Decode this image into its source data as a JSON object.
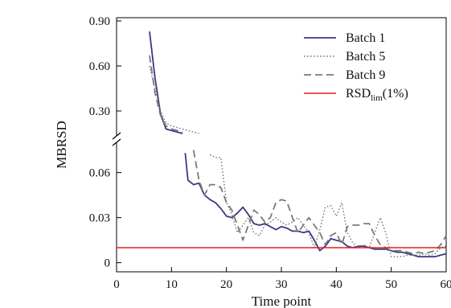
{
  "chart_data": {
    "type": "line",
    "xlabel": "Time point",
    "ylabel": "MBRSD",
    "xlim": [
      0,
      60
    ],
    "x_ticks": [
      "0",
      "10",
      "20",
      "30",
      "40",
      "50",
      "60"
    ],
    "y_axis_break": true,
    "y_upper": {
      "range": [
        0.15,
        0.9
      ],
      "ticks": [
        "0.30",
        "0.60",
        "0.90"
      ],
      "tick_values": [
        0.3,
        0.6,
        0.9
      ]
    },
    "y_lower": {
      "range": [
        -0.005,
        0.078
      ],
      "ticks": [
        "0",
        "0.03",
        "0.06"
      ],
      "tick_values": [
        0,
        0.03,
        0.06
      ]
    },
    "legend_position": "top-right",
    "grid": false,
    "series": [
      {
        "name": "Batch 1",
        "name_main": "Batch 1",
        "name_sub": "",
        "name_suffix": "",
        "color": "#3a3a80",
        "dash": "solid",
        "upper": [
          [
            6,
            0.83
          ],
          [
            7,
            0.52
          ],
          [
            8,
            0.28
          ],
          [
            9,
            0.18
          ],
          [
            10,
            0.17
          ],
          [
            11,
            0.16
          ],
          [
            12,
            0.15
          ]
        ],
        "lower": [
          [
            12.5,
            0.073
          ],
          [
            13,
            0.055
          ],
          [
            14,
            0.052
          ],
          [
            15,
            0.053
          ],
          [
            16,
            0.045
          ],
          [
            17,
            0.042
          ],
          [
            18,
            0.04
          ],
          [
            19,
            0.036
          ],
          [
            20,
            0.031
          ],
          [
            21,
            0.03
          ],
          [
            22,
            0.033
          ],
          [
            23,
            0.037
          ],
          [
            24,
            0.032
          ],
          [
            25,
            0.026
          ],
          [
            26,
            0.025
          ],
          [
            27,
            0.026
          ],
          [
            28,
            0.024
          ],
          [
            29,
            0.022
          ],
          [
            30,
            0.024
          ],
          [
            31,
            0.023
          ],
          [
            32,
            0.021
          ],
          [
            33,
            0.021
          ],
          [
            34,
            0.02
          ],
          [
            35,
            0.021
          ],
          [
            36,
            0.015
          ],
          [
            37,
            0.008
          ],
          [
            38,
            0.011
          ],
          [
            39,
            0.016
          ],
          [
            40,
            0.015
          ],
          [
            41,
            0.014
          ],
          [
            42,
            0.011
          ],
          [
            43,
            0.01
          ],
          [
            44,
            0.011
          ],
          [
            45,
            0.011
          ],
          [
            46,
            0.01
          ],
          [
            47,
            0.009
          ],
          [
            48,
            0.009
          ],
          [
            49,
            0.009
          ],
          [
            50,
            0.008
          ],
          [
            51,
            0.007
          ],
          [
            52,
            0.007
          ],
          [
            53,
            0.006
          ],
          [
            54,
            0.005
          ],
          [
            55,
            0.004
          ],
          [
            56,
            0.004
          ],
          [
            57,
            0.004
          ],
          [
            58,
            0.004
          ],
          [
            59,
            0.005
          ],
          [
            60,
            0.006
          ]
        ]
      },
      {
        "name": "Batch 5",
        "name_main": "Batch 5",
        "name_sub": "",
        "name_suffix": "",
        "color": "#777777",
        "dash": "dotted",
        "upper": [
          [
            6,
            0.6
          ],
          [
            7,
            0.45
          ],
          [
            8,
            0.3
          ],
          [
            9,
            0.22
          ],
          [
            10,
            0.2
          ],
          [
            11,
            0.19
          ],
          [
            12,
            0.18
          ],
          [
            13,
            0.17
          ],
          [
            14,
            0.16
          ],
          [
            15,
            0.15
          ]
        ],
        "lower": [
          [
            17,
            0.072
          ],
          [
            18,
            0.07
          ],
          [
            19,
            0.07
          ],
          [
            20,
            0.04
          ],
          [
            21,
            0.032
          ],
          [
            22,
            0.02
          ],
          [
            23,
            0.025
          ],
          [
            24,
            0.03
          ],
          [
            25,
            0.02
          ],
          [
            26,
            0.018
          ],
          [
            27,
            0.025
          ],
          [
            28,
            0.027
          ],
          [
            29,
            0.03
          ],
          [
            30,
            0.027
          ],
          [
            31,
            0.025
          ],
          [
            32,
            0.027
          ],
          [
            33,
            0.03
          ],
          [
            34,
            0.025
          ],
          [
            35,
            0.02
          ],
          [
            36,
            0.01
          ],
          [
            37,
            0.022
          ],
          [
            38,
            0.037
          ],
          [
            39,
            0.038
          ],
          [
            40,
            0.031
          ],
          [
            41,
            0.04
          ],
          [
            42,
            0.02
          ],
          [
            43,
            0.013
          ],
          [
            44,
            0.01
          ],
          [
            45,
            0.012
          ],
          [
            46,
            0.01
          ],
          [
            47,
            0.02
          ],
          [
            48,
            0.03
          ],
          [
            49,
            0.02
          ],
          [
            50,
            0.004
          ],
          [
            51,
            0.004
          ],
          [
            52,
            0.004
          ],
          [
            53,
            0.005
          ],
          [
            54,
            0.005
          ],
          [
            55,
            0.005
          ],
          [
            56,
            0.006
          ],
          [
            57,
            0.005
          ],
          [
            58,
            0.006
          ],
          [
            59,
            0.01
          ],
          [
            60,
            0.011
          ]
        ]
      },
      {
        "name": "Batch 9",
        "name_main": "Batch 9",
        "name_sub": "",
        "name_suffix": "",
        "color": "#7a7a7a",
        "dash": "dashed",
        "upper": [
          [
            6,
            0.67
          ],
          [
            7,
            0.42
          ],
          [
            8,
            0.27
          ],
          [
            9,
            0.2
          ],
          [
            10,
            0.18
          ],
          [
            11,
            0.17
          ],
          [
            12,
            0.16
          ]
        ],
        "lower": [
          [
            14,
            0.075
          ],
          [
            15,
            0.055
          ],
          [
            16,
            0.045
          ],
          [
            17,
            0.052
          ],
          [
            18,
            0.052
          ],
          [
            19,
            0.05
          ],
          [
            20,
            0.04
          ],
          [
            21,
            0.035
          ],
          [
            22,
            0.025
          ],
          [
            23,
            0.015
          ],
          [
            24,
            0.025
          ],
          [
            25,
            0.035
          ],
          [
            26,
            0.032
          ],
          [
            27,
            0.027
          ],
          [
            28,
            0.03
          ],
          [
            29,
            0.04
          ],
          [
            30,
            0.042
          ],
          [
            31,
            0.041
          ],
          [
            32,
            0.03
          ],
          [
            33,
            0.02
          ],
          [
            34,
            0.025
          ],
          [
            35,
            0.03
          ],
          [
            36,
            0.025
          ],
          [
            37,
            0.02
          ],
          [
            38,
            0.012
          ],
          [
            39,
            0.018
          ],
          [
            40,
            0.02
          ],
          [
            41,
            0.012
          ],
          [
            42,
            0.024
          ],
          [
            43,
            0.025
          ],
          [
            44,
            0.025
          ],
          [
            45,
            0.026
          ],
          [
            46,
            0.026
          ],
          [
            47,
            0.018
          ],
          [
            48,
            0.012
          ],
          [
            49,
            0.01
          ],
          [
            50,
            0.008
          ],
          [
            51,
            0.008
          ],
          [
            52,
            0.008
          ],
          [
            53,
            0.007
          ],
          [
            54,
            0.006
          ],
          [
            55,
            0.007
          ],
          [
            56,
            0.006
          ],
          [
            57,
            0.007
          ],
          [
            58,
            0.008
          ],
          [
            59,
            0.012
          ],
          [
            60,
            0.018
          ]
        ]
      },
      {
        "name": "RSDlim(1%)",
        "name_main": "RSD",
        "name_sub": "lim",
        "name_suffix": "(1%)",
        "color": "#e0201c",
        "dash": "solid",
        "value": 0.01
      }
    ]
  }
}
